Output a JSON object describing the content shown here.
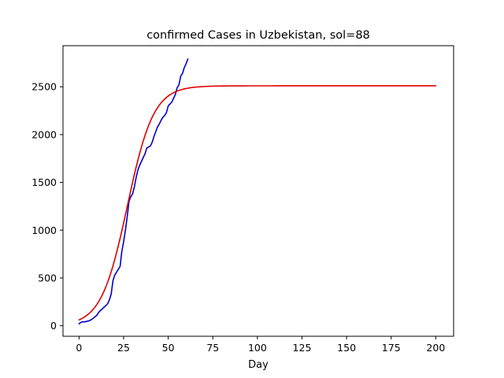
{
  "chart_data": {
    "type": "line",
    "title": "confirmed Cases in Uzbekistan, sol=88",
    "xlabel": "Day",
    "ylabel": "",
    "xlim": [
      -9,
      210
    ],
    "ylim": [
      -110,
      2930
    ],
    "xticks": [
      0,
      25,
      50,
      75,
      100,
      125,
      150,
      175,
      200
    ],
    "yticks": [
      0,
      500,
      1000,
      1500,
      2000,
      2500
    ],
    "grid": false,
    "series": [
      {
        "color": "#0000cc",
        "x": [
          0,
          1,
          2,
          3,
          4,
          5,
          6,
          7,
          8,
          9,
          10,
          11,
          12,
          13,
          14,
          15,
          16,
          17,
          18,
          19,
          20,
          21,
          22,
          23,
          24,
          25,
          26,
          27,
          28,
          29,
          30,
          31,
          32,
          33,
          34,
          35,
          36,
          37,
          38,
          39,
          40,
          41,
          42,
          43,
          44,
          45,
          46,
          47,
          48,
          49,
          50,
          51,
          52,
          53,
          54,
          55,
          56,
          57,
          58,
          59,
          60,
          61
        ],
        "values": [
          20,
          35,
          42,
          40,
          45,
          48,
          55,
          65,
          80,
          95,
          110,
          140,
          160,
          175,
          195,
          210,
          230,
          270,
          330,
          470,
          530,
          560,
          590,
          620,
          780,
          880,
          1000,
          1140,
          1300,
          1350,
          1380,
          1450,
          1550,
          1630,
          1680,
          1720,
          1760,
          1800,
          1860,
          1870,
          1880,
          1920,
          1980,
          2030,
          2080,
          2110,
          2150,
          2180,
          2200,
          2230,
          2300,
          2320,
          2340,
          2380,
          2420,
          2490,
          2520,
          2610,
          2640,
          2700,
          2740,
          2790
        ]
      },
      {
        "color": "#dd0000",
        "model": "logistic",
        "K": 2510,
        "r": 0.136,
        "t0": 27.1,
        "x_range": [
          0,
          200
        ]
      }
    ]
  }
}
